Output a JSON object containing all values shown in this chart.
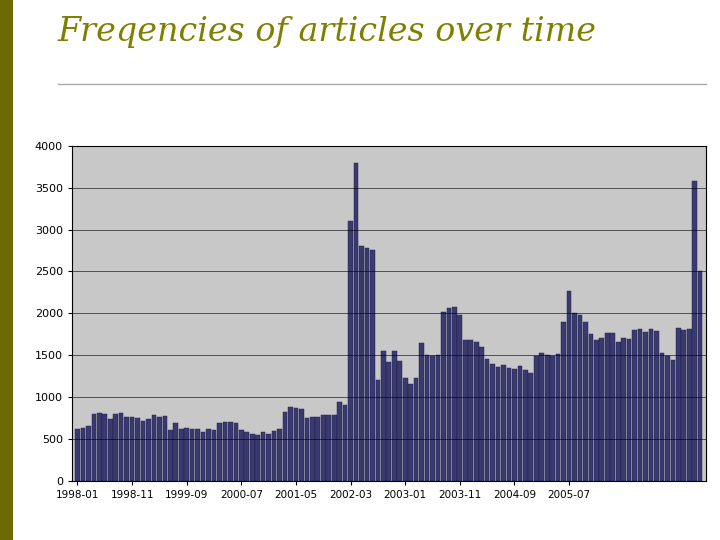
{
  "title": "Freqencies of articles over time",
  "title_color": "#808000",
  "title_fontsize": 24,
  "bar_color": "#3a3a6e",
  "bar_edge_color": "#1a1a50",
  "plot_bg_color": "#c8c8c8",
  "fig_bg_color": "#ffffff",
  "left_bar_color": "#6b6b00",
  "ylim": [
    0,
    4000
  ],
  "yticks": [
    0,
    500,
    1000,
    1500,
    2000,
    2500,
    3000,
    3500,
    4000
  ],
  "xlabel_ticks": [
    "1998-01",
    "1998-11",
    "1999-09",
    "2000-07",
    "2001-05",
    "2002-03",
    "2003-01",
    "2003-11",
    "2004-09",
    "2005-07"
  ],
  "tick_indices": [
    0,
    10,
    20,
    30,
    40,
    50,
    60,
    70,
    80,
    90
  ],
  "values": [
    620,
    630,
    650,
    800,
    810,
    800,
    730,
    800,
    810,
    760,
    760,
    750,
    710,
    730,
    780,
    760,
    770,
    600,
    690,
    620,
    630,
    620,
    620,
    580,
    620,
    600,
    690,
    700,
    700,
    690,
    600,
    580,
    560,
    550,
    580,
    560,
    590,
    620,
    820,
    880,
    870,
    860,
    750,
    760,
    760,
    780,
    780,
    780,
    940,
    900,
    3100,
    3800,
    2800,
    2780,
    2750,
    1200,
    1550,
    1420,
    1550,
    1430,
    1220,
    1150,
    1230,
    1640,
    1500,
    1490,
    1500,
    2010,
    2060,
    2080,
    1980,
    1680,
    1680,
    1660,
    1600,
    1450,
    1390,
    1360,
    1380,
    1340,
    1330,
    1370,
    1320,
    1290,
    1490,
    1520,
    1500,
    1490,
    1510,
    1890,
    2260,
    2000,
    1980,
    1890,
    1750,
    1680,
    1700,
    1760,
    1760,
    1660,
    1700,
    1690,
    1800,
    1810,
    1780,
    1810,
    1790,
    1530,
    1490,
    1440,
    1820,
    1800,
    1810,
    3580,
    2510
  ]
}
